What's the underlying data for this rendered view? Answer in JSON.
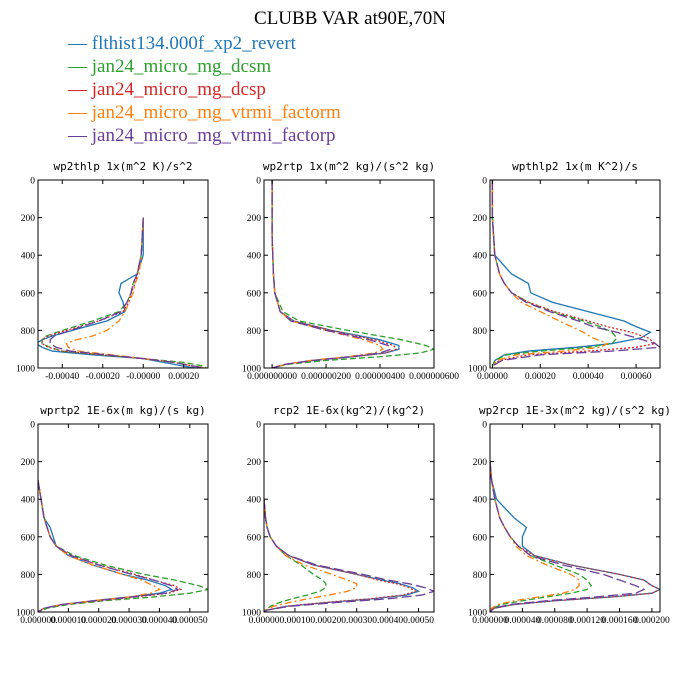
{
  "figure": {
    "title": "CLUBB VAR at90E,70N"
  },
  "legend": [
    {
      "label": "flthist134.000f_xp2_revert",
      "color": "#1f77b4",
      "dash": "solid"
    },
    {
      "label": "jan24_micro_mg_dcsm",
      "color": "#2ca02c",
      "dash": "dash"
    },
    {
      "label": "jan24_micro_mg_dcsp",
      "color": "#d62728",
      "dash": "dot"
    },
    {
      "label": "jan24_micro_mg_vtrmi_factorm",
      "color": "#ff7f0e",
      "dash": "dashdot"
    },
    {
      "label": "jan24_micro_mg_vtrmi_factorp",
      "color": "#6a3d9a",
      "dash": "longdash"
    }
  ],
  "chart_data": [
    {
      "type": "line",
      "title": "wp2thlp  1x(m^2 K)/s^2",
      "xlim": [
        -0.00052,
        0.00032
      ],
      "ylim": [
        1000,
        0
      ],
      "xticks": [
        -0.0004,
        -0.0002,
        0.0,
        0.0002
      ],
      "xticklabels": [
        "-0.00040",
        "-0.00020",
        "-0.00000",
        "0.00020"
      ],
      "yticks": [
        0,
        200,
        400,
        600,
        800,
        1000
      ],
      "yticklabels": [
        "0",
        "200",
        "400",
        "600",
        "800",
        "1000"
      ],
      "y": [
        200,
        400,
        500,
        550,
        600,
        650,
        700,
        750,
        800,
        830,
        850,
        870,
        890,
        910,
        930,
        950,
        970,
        990,
        1000
      ],
      "series": [
        {
          "name": "flthist134.000f_xp2_revert",
          "values": [
            0.0,
            0.0,
            -3e-05,
            -0.00011,
            -0.00012,
            -0.0001,
            -9e-05,
            -0.00018,
            -0.00035,
            -0.00045,
            -0.0005,
            -0.00053,
            -0.0005,
            -0.00045,
            -0.00025,
            0.0,
            0.0001,
            0.0002,
            0.00026
          ]
        },
        {
          "name": "jan24_micro_mg_dcsm",
          "values": [
            0.0,
            -1e-05,
            -3e-05,
            -5e-05,
            -6e-05,
            -8e-05,
            -0.00012,
            -0.00025,
            -0.0004,
            -0.00048,
            -0.0005,
            -0.0005,
            -0.00046,
            -0.0004,
            -0.0002,
            0.0,
            0.0002,
            0.0003,
            0.00031
          ]
        },
        {
          "name": "jan24_micro_mg_dcsp",
          "values": [
            0.0,
            -1e-05,
            -3e-05,
            -4e-05,
            -6e-05,
            -7e-05,
            -0.0001,
            -0.00022,
            -0.00038,
            -0.00047,
            -0.0005,
            -0.0005,
            -0.00047,
            -0.0004,
            -0.0002,
            0.0,
            0.00015,
            0.00025,
            0.0003
          ]
        },
        {
          "name": "jan24_micro_mg_vtrmi_factorm",
          "values": [
            0.0,
            -1e-05,
            -2e-05,
            -4e-05,
            -5e-05,
            -7e-05,
            -9e-05,
            -0.00012,
            -0.00018,
            -0.00025,
            -0.00033,
            -0.00038,
            -0.00037,
            -0.00032,
            -0.00015,
            0.0,
            0.00015,
            0.00025,
            0.0003
          ]
        },
        {
          "name": "jan24_micro_mg_vtrmi_factorp",
          "values": [
            0.0,
            -1e-05,
            -3e-05,
            -5e-05,
            -6e-05,
            -8e-05,
            -0.00011,
            -0.00022,
            -0.00036,
            -0.00044,
            -0.00046,
            -0.00046,
            -0.00043,
            -0.00036,
            -0.00018,
            0.0,
            0.00015,
            0.00025,
            0.0003
          ]
        }
      ]
    },
    {
      "type": "line",
      "title": "wp2rtp  1x(m^2 kg)/(s^2 kg)",
      "xlim": [
        -3e-08,
        6e-07
      ],
      "ylim": [
        1000,
        0
      ],
      "xticks": [
        0.0,
        2e-07,
        4e-07,
        6e-07
      ],
      "xticklabels": [
        "0.000000000",
        "0.000000200",
        "0.000000400",
        "0.000000600"
      ],
      "yticks": [
        0,
        200,
        400,
        600,
        800,
        1000
      ],
      "yticklabels": [
        "0",
        "200",
        "400",
        "600",
        "800",
        "1000"
      ],
      "y": [
        0,
        300,
        500,
        600,
        700,
        750,
        800,
        850,
        880,
        900,
        920,
        940,
        960,
        980,
        1000
      ],
      "series": [
        {
          "name": "flthist134.000f_xp2_revert",
          "values": [
            0.0,
            0.0,
            5e-09,
            1e-08,
            3e-08,
            8e-08,
            2.2e-07,
            4e-07,
            4.7e-07,
            4.7e-07,
            4.2e-07,
            3e-07,
            1.5e-07,
            5e-08,
            0.0
          ]
        },
        {
          "name": "jan24_micro_mg_dcsm",
          "values": [
            0.0,
            0.0,
            5e-09,
            1e-08,
            4e-08,
            1e-07,
            2.8e-07,
            4.8e-07,
            5.7e-07,
            6e-07,
            5.5e-07,
            4e-07,
            2e-07,
            6e-08,
            0.0
          ]
        },
        {
          "name": "jan24_micro_mg_dcsp",
          "values": [
            0.0,
            0.0,
            5e-09,
            1e-08,
            3e-08,
            8e-08,
            2.2e-07,
            3.8e-07,
            4.5e-07,
            4.6e-07,
            4.2e-07,
            3e-07,
            1.5e-07,
            5e-08,
            0.0
          ]
        },
        {
          "name": "jan24_micro_mg_vtrmi_factorm",
          "values": [
            0.0,
            0.0,
            5e-09,
            1e-08,
            3e-08,
            7e-08,
            2e-07,
            3.4e-07,
            4e-07,
            4.1e-07,
            3.8e-07,
            2.8e-07,
            1.4e-07,
            5e-08,
            0.0
          ]
        },
        {
          "name": "jan24_micro_mg_vtrmi_factorp",
          "values": [
            0.0,
            0.0,
            5e-09,
            1e-08,
            3e-08,
            7e-08,
            2e-07,
            3.6e-07,
            4.3e-07,
            4.4e-07,
            4e-07,
            2.9e-07,
            1.5e-07,
            5e-08,
            0.0
          ]
        }
      ]
    },
    {
      "type": "line",
      "title": "wpthlp2  1x(m K^2)/s",
      "xlim": [
        -1e-05,
        0.0007
      ],
      "ylim": [
        1000,
        0
      ],
      "xticks": [
        0.0,
        0.0002,
        0.0004,
        0.0006
      ],
      "xticklabels": [
        "0.00000",
        "0.00020",
        "0.00040",
        "0.00060"
      ],
      "yticks": [
        0,
        200,
        400,
        600,
        800,
        1000
      ],
      "yticklabels": [
        "0",
        "200",
        "400",
        "600",
        "800",
        "1000"
      ],
      "y": [
        0,
        200,
        300,
        400,
        500,
        550,
        600,
        650,
        700,
        750,
        780,
        810,
        840,
        870,
        890,
        910,
        930,
        960,
        990
      ],
      "series": [
        {
          "name": "flthist134.000f_xp2_revert",
          "values": [
            0.0,
            0.0,
            5e-06,
            1e-05,
            8e-05,
            0.00015,
            0.00016,
            0.00025,
            0.0004,
            0.00055,
            0.0006,
            0.00066,
            0.00062,
            0.0005,
            0.00035,
            0.00015,
            5e-05,
            1e-05,
            0.0
          ]
        },
        {
          "name": "jan24_micro_mg_dcsm",
          "values": [
            0.0,
            0.0,
            5e-06,
            1e-05,
            3e-05,
            5e-05,
            8e-05,
            0.00015,
            0.00025,
            0.00038,
            0.00045,
            0.0005,
            0.00052,
            0.0005,
            0.0004,
            0.0002,
            6e-05,
            1e-05,
            0.0
          ]
        },
        {
          "name": "jan24_micro_mg_dcsp",
          "values": [
            0.0,
            0.0,
            5e-06,
            1e-05,
            3e-05,
            5e-05,
            8e-05,
            0.00015,
            0.00026,
            0.0004,
            0.00048,
            0.00058,
            0.00065,
            0.00068,
            0.0006,
            0.0004,
            0.00015,
            3e-05,
            0.0
          ]
        },
        {
          "name": "jan24_micro_mg_vtrmi_factorm",
          "values": [
            0.0,
            0.0,
            5e-06,
            1e-05,
            3e-05,
            5e-05,
            8e-05,
            0.00012,
            0.0002,
            0.00028,
            0.00033,
            0.00038,
            0.00042,
            0.00048,
            0.00045,
            0.0003,
            0.0001,
            2e-05,
            0.0
          ]
        },
        {
          "name": "jan24_micro_mg_vtrmi_factorp",
          "values": [
            0.0,
            0.0,
            5e-06,
            1e-05,
            3e-05,
            5e-05,
            8e-05,
            0.00014,
            0.00024,
            0.00036,
            0.00042,
            0.00052,
            0.0006,
            0.00068,
            0.0007,
            0.0005,
            0.0002,
            4e-05,
            0.0
          ]
        }
      ]
    },
    {
      "type": "line",
      "title": "wprtp2  1E-6x(m kg)/(s kg)",
      "xlim": [
        0.0,
        5.6e-05
      ],
      "ylim": [
        1000,
        0
      ],
      "xticks": [
        0.0,
        1e-05,
        2e-05,
        3e-05,
        4e-05,
        5e-05
      ],
      "xticklabels": [
        "0.000000",
        "0.000010",
        "0.000020",
        "0.000030",
        "0.000040",
        "0.000050"
      ],
      "yticks": [
        0,
        200,
        400,
        600,
        800,
        1000
      ],
      "yticklabels": [
        "0",
        "200",
        "400",
        "600",
        "800",
        "1000"
      ],
      "y": [
        300,
        400,
        500,
        550,
        600,
        650,
        700,
        750,
        800,
        830,
        860,
        880,
        900,
        920,
        940,
        960,
        980,
        1000
      ],
      "series": [
        {
          "name": "flthist134.000f_xp2_revert",
          "values": [
            0.0,
            1e-06,
            2e-06,
            4e-06,
            5e-06,
            6e-06,
            1e-05,
            1.8e-05,
            2.8e-05,
            3.6e-05,
            4.2e-05,
            4.4e-05,
            4e-05,
            3e-05,
            1.8e-05,
            8e-06,
            2e-06,
            0.0
          ]
        },
        {
          "name": "jan24_micro_mg_dcsm",
          "values": [
            0.0,
            1e-06,
            2e-06,
            3e-06,
            4e-06,
            6e-06,
            1.2e-05,
            2.2e-05,
            3.5e-05,
            4.5e-05,
            5.3e-05,
            5.6e-05,
            5e-05,
            3.8e-05,
            2.2e-05,
            1e-05,
            3e-06,
            0.0
          ]
        },
        {
          "name": "jan24_micro_mg_dcsp",
          "values": [
            0.0,
            1e-06,
            2e-06,
            3e-06,
            4e-06,
            6e-06,
            1.1e-05,
            2e-05,
            3.2e-05,
            3.8e-05,
            4.5e-05,
            4.7e-05,
            4.3e-05,
            3.2e-05,
            2e-05,
            8e-06,
            2e-06,
            0.0
          ]
        },
        {
          "name": "jan24_micro_mg_vtrmi_factorm",
          "values": [
            0.0,
            1e-06,
            2e-06,
            3e-06,
            4e-06,
            6e-06,
            1e-05,
            1.8e-05,
            2.8e-05,
            3.4e-05,
            3.8e-05,
            4e-05,
            3.7e-05,
            3e-05,
            1.8e-05,
            8e-06,
            2e-06,
            0.0
          ]
        },
        {
          "name": "jan24_micro_mg_vtrmi_factorp",
          "values": [
            0.0,
            1e-06,
            2e-06,
            3e-06,
            4e-06,
            6e-06,
            1.1e-05,
            2e-05,
            3.1e-05,
            3.8e-05,
            4.4e-05,
            4.6e-05,
            4.2e-05,
            3.1e-05,
            1.9e-05,
            8e-06,
            2e-06,
            0.0
          ]
        }
      ]
    },
    {
      "type": "line",
      "title": "rcp2  1E-6x(kg^2)/(kg^2)",
      "xlim": [
        0.0,
        0.00055
      ],
      "ylim": [
        1000,
        0
      ],
      "xticks": [
        0.0,
        0.0001,
        0.0002,
        0.0003,
        0.0004,
        0.0005
      ],
      "xticklabels": [
        "0.00000",
        "0.00010",
        "0.00020",
        "0.00030",
        "0.00040",
        "0.00050"
      ],
      "yticks": [
        0,
        200,
        400,
        600,
        800,
        1000
      ],
      "yticklabels": [
        "0",
        "200",
        "400",
        "600",
        "800",
        "1000"
      ],
      "y": [
        400,
        500,
        550,
        600,
        650,
        700,
        750,
        800,
        830,
        850,
        870,
        890,
        910,
        930,
        950,
        970,
        990,
        1000
      ],
      "series": [
        {
          "name": "flthist134.000f_xp2_revert",
          "values": [
            0.0,
            5e-06,
            1e-05,
            2e-05,
            4e-05,
            8e-05,
            0.00016,
            0.0003,
            0.00038,
            0.00044,
            0.00048,
            0.0005,
            0.00046,
            0.00035,
            0.0002,
            7e-05,
            1e-05,
            0.0
          ]
        },
        {
          "name": "jan24_micro_mg_dcsm",
          "values": [
            0.0,
            5e-06,
            1e-05,
            2e-05,
            4e-05,
            7e-05,
            0.00012,
            0.00016,
            0.00019,
            0.0002,
            0.0002,
            0.00018,
            0.00014,
            9e-05,
            5e-05,
            2e-05,
            5e-06,
            0.0
          ]
        },
        {
          "name": "jan24_micro_mg_dcsp",
          "values": [
            0.0,
            5e-06,
            1e-05,
            2e-05,
            4e-05,
            8e-05,
            0.00016,
            0.0003,
            0.00037,
            0.00043,
            0.00047,
            0.00049,
            0.00045,
            0.00034,
            0.00019,
            7e-05,
            1e-05,
            0.0
          ]
        },
        {
          "name": "jan24_micro_mg_vtrmi_factorm",
          "values": [
            0.0,
            5e-06,
            1e-05,
            2e-05,
            4e-05,
            7e-05,
            0.00013,
            0.00022,
            0.00027,
            0.0003,
            0.0003,
            0.00027,
            0.00021,
            0.00014,
            8e-05,
            3e-05,
            5e-06,
            0.0
          ]
        },
        {
          "name": "jan24_micro_mg_vtrmi_factorp",
          "values": [
            0.0,
            5e-06,
            1e-05,
            2e-05,
            4e-05,
            8e-05,
            0.00017,
            0.00032,
            0.0004,
            0.00047,
            0.00052,
            0.00055,
            0.00051,
            0.0004,
            0.00023,
            8e-05,
            1e-05,
            0.0
          ]
        }
      ]
    },
    {
      "type": "line",
      "title": "wp2rcp  1E-3x(m^2 kg)/(s^2 kg)",
      "xlim": [
        0.0,
        0.00021
      ],
      "ylim": [
        1000,
        0
      ],
      "xticks": [
        0.0,
        4e-05,
        8e-05,
        0.00012,
        0.00016,
        0.0002
      ],
      "xticklabels": [
        "0.000000",
        "0.000040",
        "0.000080",
        "0.000120",
        "0.000160",
        "0.000200"
      ],
      "yticks": [
        0,
        200,
        400,
        600,
        800,
        1000
      ],
      "yticklabels": [
        "0",
        "200",
        "400",
        "600",
        "800",
        "1000"
      ],
      "y": [
        200,
        300,
        400,
        500,
        550,
        600,
        650,
        700,
        750,
        800,
        830,
        860,
        880,
        900,
        920,
        940,
        960,
        980,
        1000
      ],
      "series": [
        {
          "name": "flthist134.000f_xp2_revert",
          "values": [
            0.0,
            2e-06,
            8e-06,
            3e-05,
            4.5e-05,
            4e-05,
            4e-05,
            5.5e-05,
            0.0001,
            0.00016,
            0.00019,
            0.0002,
            0.00021,
            0.0002,
            0.00015,
            8e-05,
            3e-05,
            5e-06,
            0.0
          ]
        },
        {
          "name": "jan24_micro_mg_dcsm",
          "values": [
            0.0,
            2e-06,
            6e-06,
            1.2e-05,
            1.8e-05,
            2.5e-05,
            3.5e-05,
            5e-05,
            8e-05,
            0.00011,
            0.00012,
            0.000125,
            0.00012,
            0.0001,
            7e-05,
            4e-05,
            1.5e-05,
            3e-06,
            0.0
          ]
        },
        {
          "name": "jan24_micro_mg_dcsp",
          "values": [
            0.0,
            2e-06,
            6e-06,
            1.2e-05,
            1.8e-05,
            2.5e-05,
            3.5e-05,
            5.5e-05,
            0.0001,
            0.00016,
            0.00019,
            0.0002,
            0.00021,
            0.0002,
            0.00015,
            8e-05,
            3e-05,
            5e-06,
            0.0
          ]
        },
        {
          "name": "jan24_micro_mg_vtrmi_factorm",
          "values": [
            0.0,
            2e-06,
            6e-06,
            1.2e-05,
            1.8e-05,
            2.5e-05,
            3.2e-05,
            4.5e-05,
            7e-05,
            0.0001,
            0.00011,
            0.00011,
            0.000105,
            9e-05,
            6e-05,
            3e-05,
            1e-05,
            2e-06,
            0.0
          ]
        },
        {
          "name": "jan24_micro_mg_vtrmi_factorp",
          "values": [
            0.0,
            2e-06,
            6e-06,
            1.2e-05,
            1.8e-05,
            2.5e-05,
            3.5e-05,
            5e-05,
            9e-05,
            0.00014,
            0.00016,
            0.00018,
            0.00019,
            0.00018,
            0.00013,
            7e-05,
            2.5e-05,
            4e-06,
            0.0
          ]
        }
      ]
    }
  ]
}
